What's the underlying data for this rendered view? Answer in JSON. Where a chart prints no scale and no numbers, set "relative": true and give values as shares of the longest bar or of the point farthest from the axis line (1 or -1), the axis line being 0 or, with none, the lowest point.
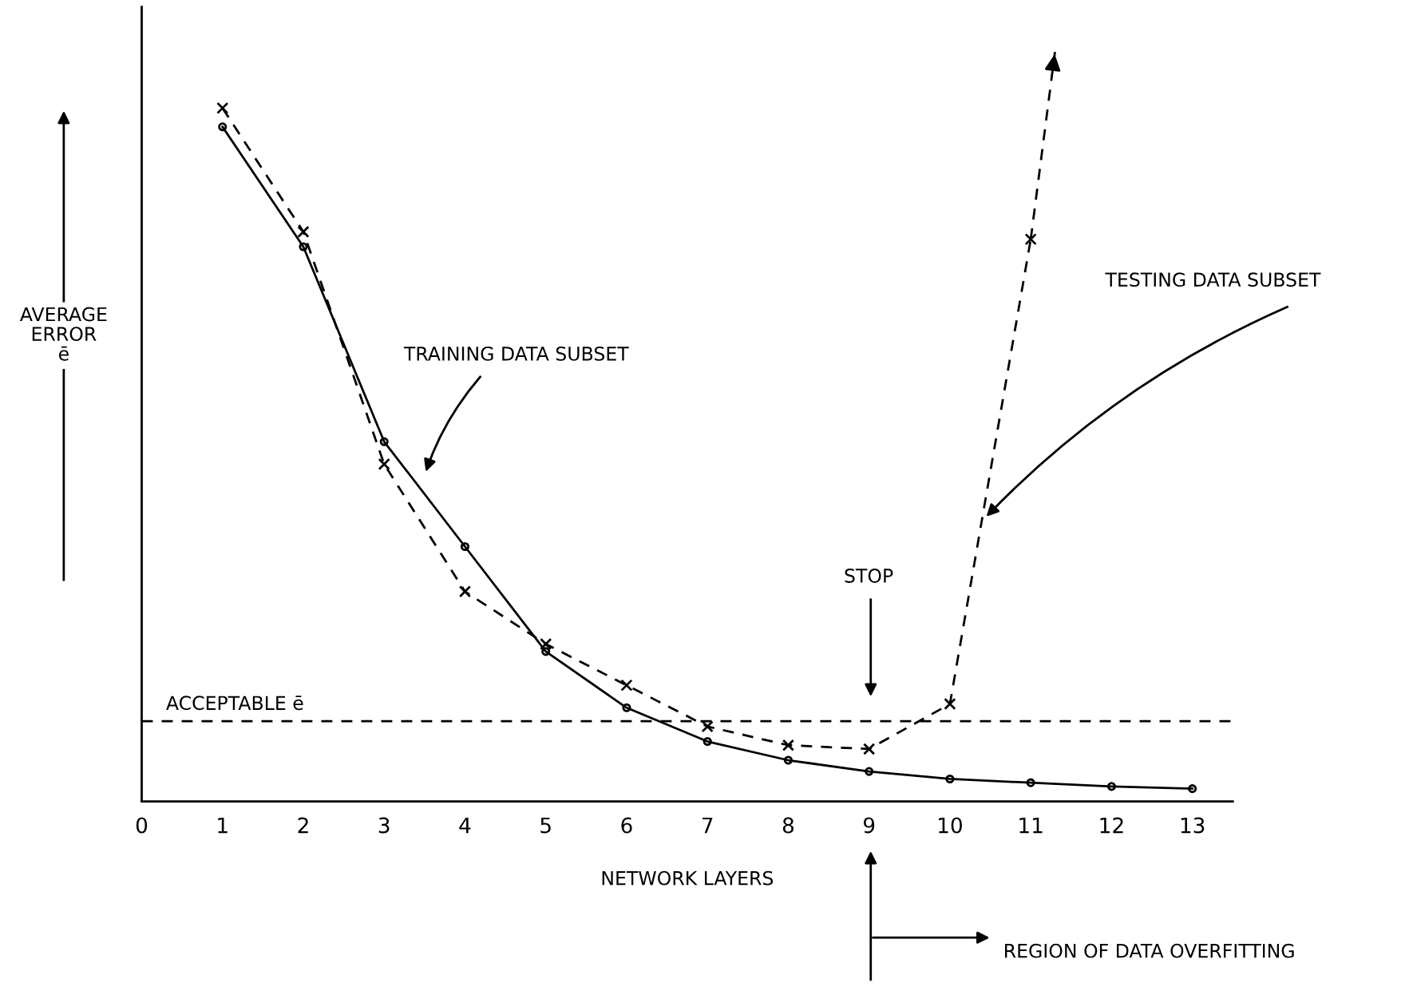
{
  "chart_data": {
    "type": "line",
    "relative": true,
    "xlabel": "NETWORK LAYERS",
    "ylabel": "AVERAGE\nERROR\nē",
    "xlim": [
      0,
      13.5
    ],
    "xticks": [
      0,
      1,
      2,
      3,
      4,
      5,
      6,
      7,
      8,
      9,
      10,
      11,
      12,
      13
    ],
    "tick_labels": "x",
    "grid": false,
    "legend": false,
    "series": [
      {
        "color": "#000000",
        "marker": "circle",
        "line_style": "solid",
        "x": [
          1,
          2,
          3,
          4,
          5,
          6,
          7,
          8,
          9,
          10,
          11,
          12,
          13
        ],
        "values": [
          0.9,
          0.74,
          0.48,
          0.34,
          0.2,
          0.125,
          0.08,
          0.055,
          0.04,
          0.03,
          0.025,
          0.02,
          0.017
        ]
      },
      {
        "color": "#000000",
        "marker": "cross",
        "line_style": "dashed",
        "x": [
          1,
          2,
          3,
          4,
          5,
          6,
          7,
          8,
          9,
          10,
          11
        ],
        "values": [
          0.925,
          0.76,
          0.45,
          0.28,
          0.21,
          0.155,
          0.1,
          0.075,
          0.07,
          0.13,
          0.75
        ]
      },
      {
        "color": "#000000",
        "marker": "none",
        "line_style": "dashed",
        "x": [
          11,
          11.3
        ],
        "values": [
          0.75,
          1.0
        ]
      }
    ],
    "ref_lines": [
      {
        "axis": "y",
        "value": 0.107,
        "label": "ACCEPTABLE ē",
        "color": "#000000",
        "line_style": "dashed"
      }
    ],
    "annotations": [
      "TRAINING DATA SUBSET",
      "TESTING DATA SUBSET",
      "STOP",
      "REGION OF DATA OVERFITTING"
    ]
  }
}
